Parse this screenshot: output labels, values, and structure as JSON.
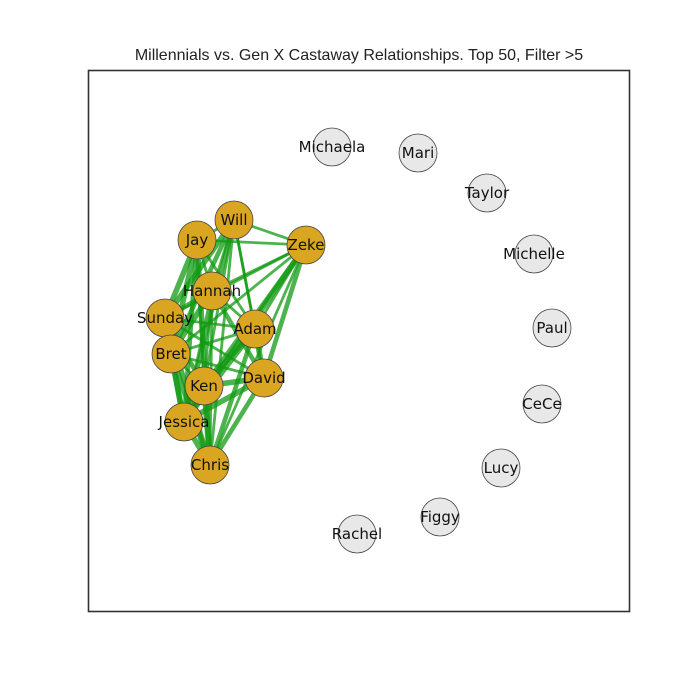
{
  "title": "Millennials vs. Gen X Castaway Relationships. Top 50, Filter >5",
  "colors": {
    "connected_node": "#DAA520",
    "isolated_node": "#E8E8E8",
    "edge": "#119911",
    "node_stroke": "#444444",
    "frame": "#333333"
  },
  "nodes": [
    {
      "id": "Michaela",
      "group": "isolated"
    },
    {
      "id": "Mari",
      "group": "isolated"
    },
    {
      "id": "Taylor",
      "group": "isolated"
    },
    {
      "id": "Michelle",
      "group": "isolated"
    },
    {
      "id": "Paul",
      "group": "isolated"
    },
    {
      "id": "CeCe",
      "group": "isolated"
    },
    {
      "id": "Lucy",
      "group": "isolated"
    },
    {
      "id": "Figgy",
      "group": "isolated"
    },
    {
      "id": "Rachel",
      "group": "isolated"
    },
    {
      "id": "Will",
      "group": "connected"
    },
    {
      "id": "Jay",
      "group": "connected"
    },
    {
      "id": "Zeke",
      "group": "connected"
    },
    {
      "id": "Hannah",
      "group": "connected"
    },
    {
      "id": "Sunday",
      "group": "connected"
    },
    {
      "id": "Adam",
      "group": "connected"
    },
    {
      "id": "Bret",
      "group": "connected"
    },
    {
      "id": "Ken",
      "group": "connected"
    },
    {
      "id": "David",
      "group": "connected"
    },
    {
      "id": "Jessica",
      "group": "connected"
    },
    {
      "id": "Chris",
      "group": "connected"
    }
  ],
  "edges": [
    {
      "source": "Will",
      "target": "Jay",
      "weight": 2
    },
    {
      "source": "Will",
      "target": "Zeke",
      "weight": 2
    },
    {
      "source": "Will",
      "target": "Hannah",
      "weight": 2
    },
    {
      "source": "Will",
      "target": "Sunday",
      "weight": 5
    },
    {
      "source": "Will",
      "target": "Bret",
      "weight": 4
    },
    {
      "source": "Will",
      "target": "Ken",
      "weight": 2
    },
    {
      "source": "Will",
      "target": "Adam",
      "weight": 2
    },
    {
      "source": "Will",
      "target": "David",
      "weight": 2
    },
    {
      "source": "Will",
      "target": "Jessica",
      "weight": 4
    },
    {
      "source": "Will",
      "target": "Chris",
      "weight": 2
    },
    {
      "source": "Jay",
      "target": "Zeke",
      "weight": 2
    },
    {
      "source": "Jay",
      "target": "Sunday",
      "weight": 5
    },
    {
      "source": "Jay",
      "target": "Bret",
      "weight": 5
    },
    {
      "source": "Jay",
      "target": "Hannah",
      "weight": 2
    },
    {
      "source": "Jay",
      "target": "Ken",
      "weight": 2
    },
    {
      "source": "Jay",
      "target": "Jessica",
      "weight": 4
    },
    {
      "source": "Jay",
      "target": "Chris",
      "weight": 5
    },
    {
      "source": "Jay",
      "target": "Adam",
      "weight": 2
    },
    {
      "source": "Zeke",
      "target": "Hannah",
      "weight": 2
    },
    {
      "source": "Zeke",
      "target": "Adam",
      "weight": 2
    },
    {
      "source": "Zeke",
      "target": "David",
      "weight": 4
    },
    {
      "source": "Zeke",
      "target": "Ken",
      "weight": 4
    },
    {
      "source": "Zeke",
      "target": "Sunday",
      "weight": 2
    },
    {
      "source": "Zeke",
      "target": "Bret",
      "weight": 2
    },
    {
      "source": "Zeke",
      "target": "Jessica",
      "weight": 5
    },
    {
      "source": "Zeke",
      "target": "Chris",
      "weight": 2
    },
    {
      "source": "Hannah",
      "target": "Sunday",
      "weight": 4
    },
    {
      "source": "Hannah",
      "target": "Adam",
      "weight": 2
    },
    {
      "source": "Hannah",
      "target": "Bret",
      "weight": 5
    },
    {
      "source": "Hannah",
      "target": "Ken",
      "weight": 2
    },
    {
      "source": "Hannah",
      "target": "David",
      "weight": 4
    },
    {
      "source": "Hannah",
      "target": "Jessica",
      "weight": 2
    },
    {
      "source": "Hannah",
      "target": "Chris",
      "weight": 2
    },
    {
      "source": "Sunday",
      "target": "Adam",
      "weight": 2
    },
    {
      "source": "Sunday",
      "target": "Bret",
      "weight": 5
    },
    {
      "source": "Sunday",
      "target": "Ken",
      "weight": 4
    },
    {
      "source": "Sunday",
      "target": "David",
      "weight": 2
    },
    {
      "source": "Sunday",
      "target": "Jessica",
      "weight": 5
    },
    {
      "source": "Sunday",
      "target": "Chris",
      "weight": 5
    },
    {
      "source": "Adam",
      "target": "Bret",
      "weight": 2
    },
    {
      "source": "Adam",
      "target": "Ken",
      "weight": 5
    },
    {
      "source": "Adam",
      "target": "David",
      "weight": 5
    },
    {
      "source": "Adam",
      "target": "Jessica",
      "weight": 5
    },
    {
      "source": "Adam",
      "target": "Chris",
      "weight": 4
    },
    {
      "source": "Bret",
      "target": "Ken",
      "weight": 2
    },
    {
      "source": "Bret",
      "target": "David",
      "weight": 2
    },
    {
      "source": "Bret",
      "target": "Jessica",
      "weight": 5
    },
    {
      "source": "Bret",
      "target": "Chris",
      "weight": 5
    },
    {
      "source": "Ken",
      "target": "David",
      "weight": 5
    },
    {
      "source": "Ken",
      "target": "Jessica",
      "weight": 4
    },
    {
      "source": "Ken",
      "target": "Chris",
      "weight": 5
    },
    {
      "source": "David",
      "target": "Jessica",
      "weight": 5
    },
    {
      "source": "David",
      "target": "Chris",
      "weight": 4
    },
    {
      "source": "Jessica",
      "target": "Chris",
      "weight": 5
    }
  ]
}
